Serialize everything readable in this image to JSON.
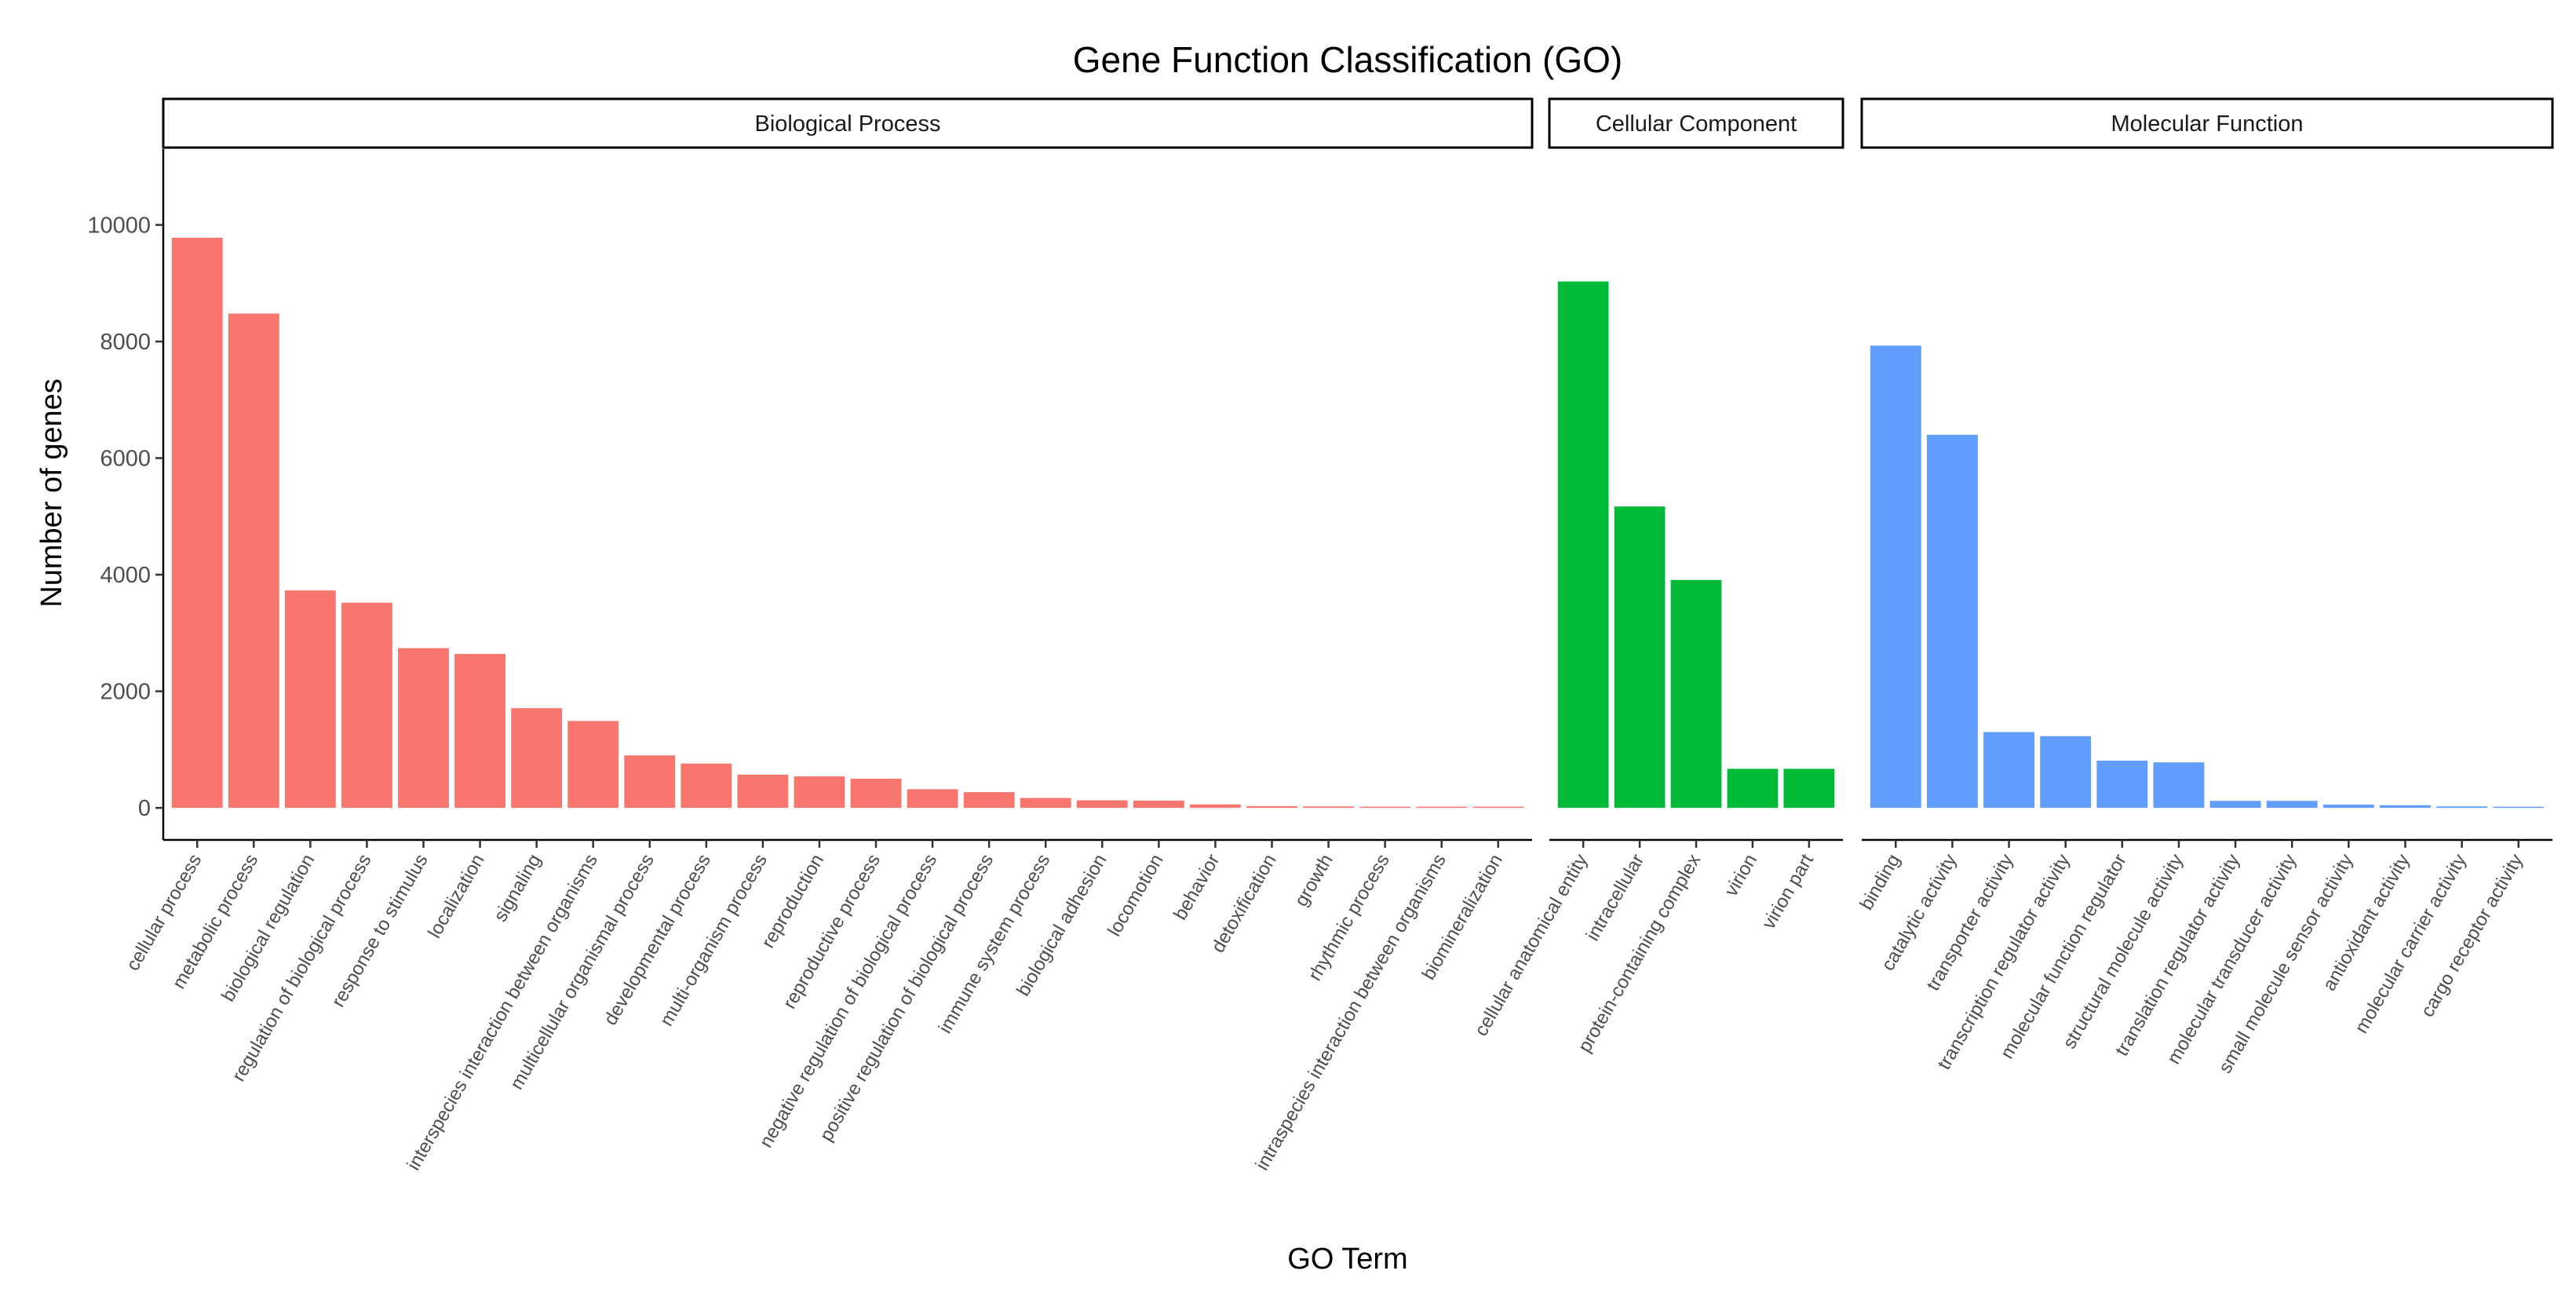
{
  "chart_data": {
    "type": "bar",
    "title": "Gene Function Classification (GO)",
    "xlabel": "GO Term",
    "ylabel": "Number of genes",
    "ylim": [
      -550,
      11300
    ],
    "yticks": [
      0,
      2000,
      4000,
      6000,
      8000,
      10000
    ],
    "grid": false,
    "legend": "none",
    "facets": [
      {
        "name": "Biological Process",
        "color": "#F8766D",
        "categories": [
          "cellular process",
          "metabolic process",
          "biological regulation",
          "regulation of biological process",
          "response to stimulus",
          "localization",
          "signaling",
          "interspecies interaction between organisms",
          "multicellular organismal process",
          "developmental process",
          "multi-organism process",
          "reproduction",
          "reproductive process",
          "negative regulation of biological process",
          "positive regulation of biological process",
          "immune system process",
          "biological adhesion",
          "locomotion",
          "behavior",
          "detoxification",
          "growth",
          "rhythmic process",
          "intraspecies interaction between organisms",
          "biomineralization"
        ],
        "values": [
          9780,
          8480,
          3730,
          3520,
          2740,
          2640,
          1710,
          1490,
          900,
          760,
          570,
          540,
          500,
          320,
          270,
          170,
          130,
          125,
          60,
          30,
          25,
          20,
          15,
          10
        ]
      },
      {
        "name": "Cellular Component",
        "color": "#00BA38",
        "categories": [
          "cellular anatomical entity",
          "intracellular",
          "protein-containing complex",
          "virion",
          "virion part"
        ],
        "values": [
          9030,
          5170,
          3910,
          670,
          670
        ]
      },
      {
        "name": "Molecular Function",
        "color": "#619CFF",
        "categories": [
          "binding",
          "catalytic activity",
          "transporter activity",
          "transcription regulator activity",
          "molecular function regulator",
          "structural molecule activity",
          "translation regulator activity",
          "molecular transducer activity",
          "small molecule sensor activity",
          "antioxidant activity",
          "molecular carrier activity",
          "cargo receptor activity"
        ],
        "values": [
          7930,
          6400,
          1300,
          1230,
          810,
          780,
          120,
          120,
          55,
          45,
          25,
          15
        ]
      }
    ]
  }
}
